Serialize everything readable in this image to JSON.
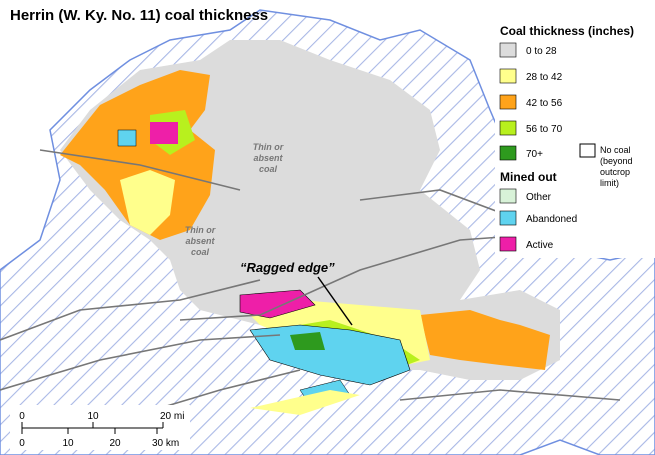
{
  "title": "Herrin (W. Ky. No. 11) coal thickness",
  "legend": {
    "title": "Coal thickness (inches)",
    "thickness": [
      {
        "label": "0 to 28",
        "color": "#dcdcdc"
      },
      {
        "label": "28 to 42",
        "color": "#ffff8c"
      },
      {
        "label": "42 to 56",
        "color": "#ffa31a"
      },
      {
        "label": "56 to 70",
        "color": "#b8f01e"
      },
      {
        "label": "70+",
        "color": "#2e9a1e"
      }
    ],
    "no_coal": [
      "No coal",
      "(beyond",
      "outcrop",
      "limit)"
    ],
    "mined_title": "Mined out",
    "mined": [
      {
        "label": "Other",
        "color": "#d8f2d8"
      },
      {
        "label": "Abandoned",
        "color": "#5fd3ef"
      },
      {
        "label": "Active",
        "color": "#ee1fa8"
      }
    ]
  },
  "annotations": {
    "thin_1": [
      "Thin or",
      "absent",
      "coal"
    ],
    "thin_2": [
      "Thin or",
      "absent",
      "coal"
    ],
    "ragged": "“Ragged edge”"
  },
  "scale": {
    "mi": [
      "0",
      "10",
      "20 mi"
    ],
    "km": [
      "0",
      "10",
      "20",
      "30 km"
    ]
  }
}
